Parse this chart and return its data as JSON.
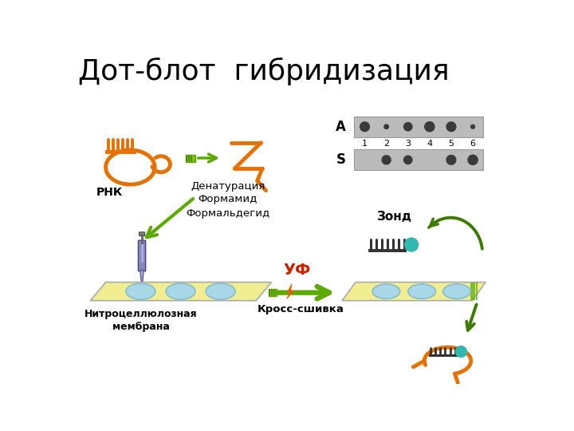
{
  "title": "Дот-блот  гибридизация",
  "title_fontsize": 26,
  "bg_color": "#ffffff",
  "orange": "#E87000",
  "green": "#5AAA00",
  "dark_green": "#3D7A00",
  "yellow_membrane": "#F0EE90",
  "light_blue": "#A8D8E8",
  "teal": "#30B8B0",
  "blot_bg": "#BBBBBB",
  "label_A": "A",
  "label_S": "S",
  "tick_labels": [
    "1",
    "2",
    "3",
    "4",
    "5",
    "6"
  ],
  "row_A_sizes": [
    8.5,
    4.0,
    7.5,
    8.8,
    8.5,
    3.5
  ],
  "row_S_sizes": [
    0.0,
    8.0,
    7.5,
    0.0,
    8.5,
    8.8
  ],
  "text_rnk": "РНК",
  "text_denat": "Денатурация\nФормамид\nФормальдегид",
  "text_membrane": "Нитроцеллюлозная\nмембрана",
  "text_crosslink": "Кросс-сшивка",
  "text_uv": "УФ",
  "text_zond": "Зонд"
}
